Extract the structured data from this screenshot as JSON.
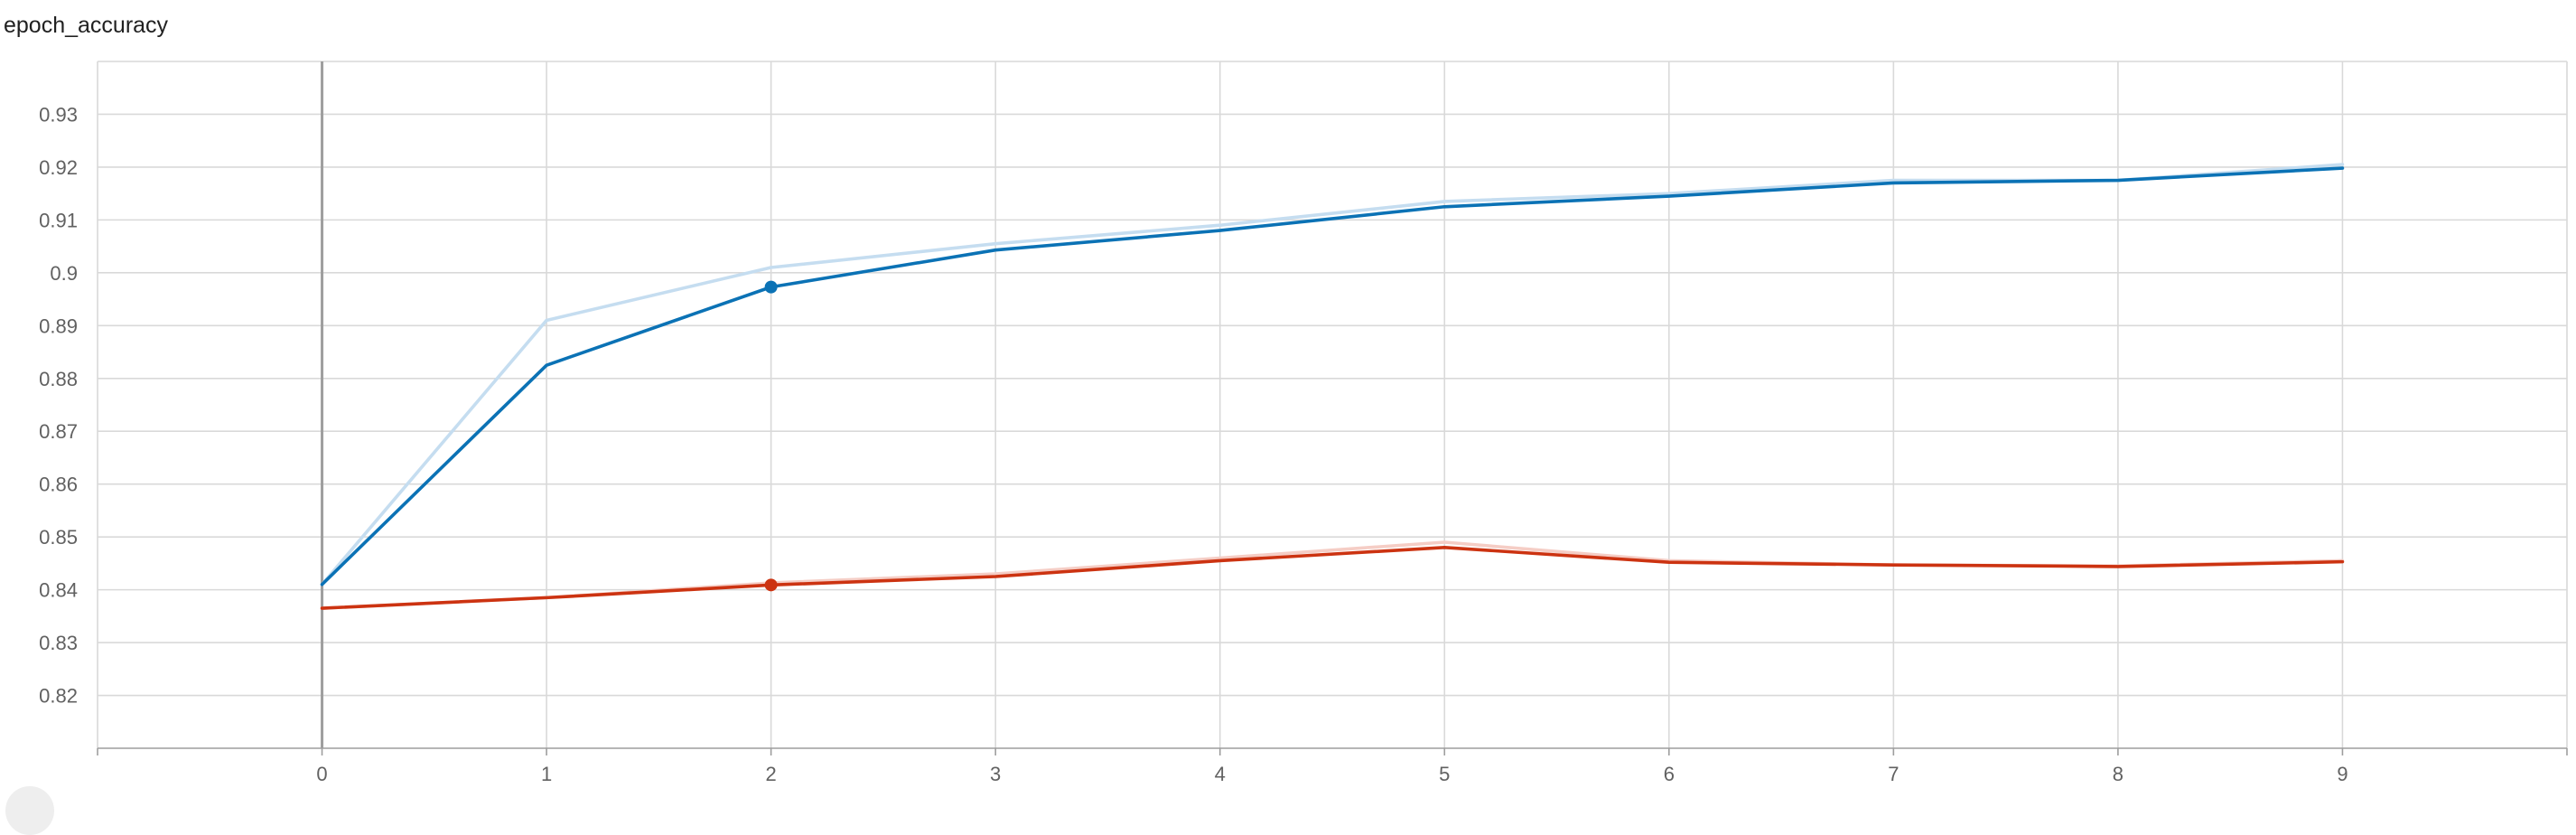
{
  "chart_data": {
    "type": "line",
    "title": "epoch_accuracy",
    "xlabel": "",
    "ylabel": "",
    "xlim": [
      -1,
      10
    ],
    "ylim": [
      0.81,
      0.94
    ],
    "x_ticks": [
      0,
      1,
      2,
      3,
      4,
      5,
      6,
      7,
      8,
      9
    ],
    "y_ticks": [
      0.82,
      0.83,
      0.84,
      0.85,
      0.86,
      0.87,
      0.88,
      0.89,
      0.9,
      0.91,
      0.92,
      0.93
    ],
    "grid": true,
    "legend": "none",
    "x": [
      0,
      1,
      2,
      3,
      4,
      5,
      6,
      7,
      8,
      9
    ],
    "series": [
      {
        "color": "#c5ddf0",
        "values": [
          0.841,
          0.891,
          0.901,
          0.9055,
          0.909,
          0.9135,
          0.915,
          0.9175,
          0.9175,
          0.9205
        ]
      },
      {
        "color": "#0b72b5",
        "values": [
          0.841,
          0.8825,
          0.8973,
          0.9043,
          0.908,
          0.9125,
          0.9145,
          0.917,
          0.9175,
          0.9198
        ],
        "highlight_x": 2
      },
      {
        "color": "#f5cdc5",
        "values": [
          0.8365,
          0.8385,
          0.8413,
          0.843,
          0.846,
          0.849,
          0.8455,
          0.8447,
          0.8445,
          0.8455
        ]
      },
      {
        "color": "#cc3311",
        "values": [
          0.8365,
          0.8385,
          0.8409,
          0.8425,
          0.8455,
          0.848,
          0.8452,
          0.8447,
          0.8444,
          0.8453
        ],
        "highlight_x": 2
      }
    ]
  }
}
